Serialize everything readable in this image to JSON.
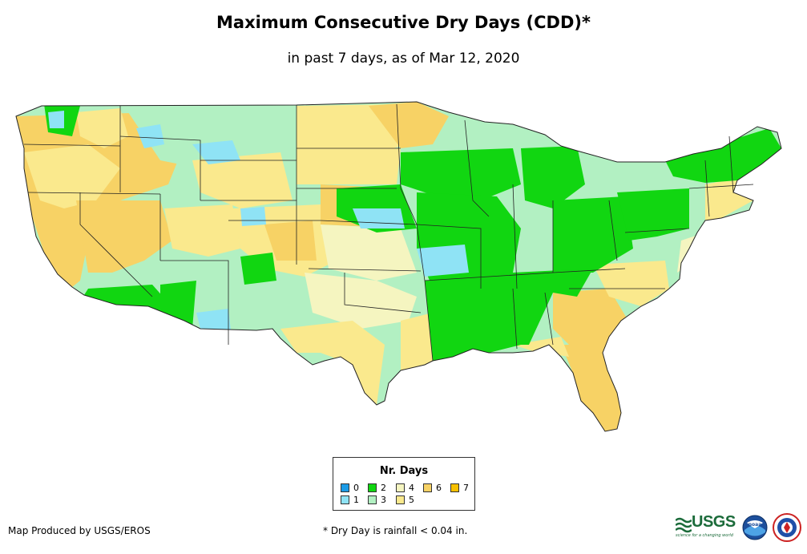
{
  "header": {
    "title": "Maximum Consecutive Dry Days (CDD)*",
    "subtitle": "in past 7 days, as of Mar 12, 2020"
  },
  "legend": {
    "title": "Nr. Days",
    "items": [
      {
        "label": "0",
        "color": "#1c9be6"
      },
      {
        "label": "1",
        "color": "#8fe3f5"
      },
      {
        "label": "2",
        "color": "#11d611"
      },
      {
        "label": "3",
        "color": "#b2f0c2"
      },
      {
        "label": "4",
        "color": "#f5f5c0"
      },
      {
        "label": "5",
        "color": "#fae98d"
      },
      {
        "label": "6",
        "color": "#f7d265"
      },
      {
        "label": "7",
        "color": "#f7c000"
      }
    ]
  },
  "footer": {
    "credit": "Map Produced by USGS/EROS",
    "note": "* Dry Day is rainfall < 0.04 in."
  },
  "logos": {
    "usgs": "USGS",
    "usgs_tagline": "science for a changing world",
    "noaa": "noaa"
  }
}
